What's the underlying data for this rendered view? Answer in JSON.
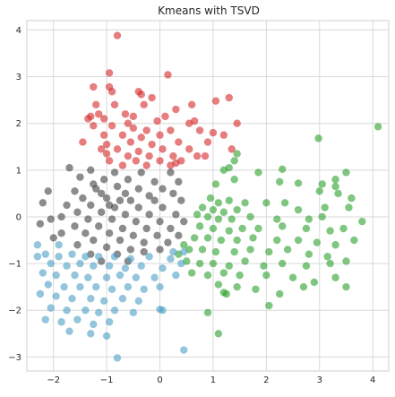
{
  "chart_data": {
    "type": "scatter",
    "title": "Kmeans with TSVD",
    "xlabel": "",
    "ylabel": "",
    "xlim": [
      -2.5,
      4.3
    ],
    "ylim": [
      -3.3,
      4.2
    ],
    "xticks": [
      -2,
      -1,
      0,
      1,
      2,
      3,
      4
    ],
    "yticks": [
      -3,
      -2,
      -1,
      0,
      1,
      2,
      3,
      4
    ],
    "grid": true,
    "legend": "none",
    "series": [
      {
        "color": "#d62728",
        "points": [
          [
            -0.8,
            3.88
          ],
          [
            -0.95,
            3.08
          ],
          [
            0.15,
            3.04
          ],
          [
            -1.25,
            2.78
          ],
          [
            -0.95,
            2.78
          ],
          [
            -0.9,
            2.68
          ],
          [
            -0.4,
            2.68
          ],
          [
            -0.35,
            2.62
          ],
          [
            1.05,
            2.48
          ],
          [
            1.3,
            2.55
          ],
          [
            -1.2,
            2.4
          ],
          [
            -0.3,
            2.4
          ],
          [
            -0.85,
            2.4
          ],
          [
            -0.15,
            2.55
          ],
          [
            0.6,
            2.4
          ],
          [
            0.3,
            2.3
          ],
          [
            -1.3,
            2.15
          ],
          [
            -1.35,
            2.1
          ],
          [
            -1.15,
            2.2
          ],
          [
            -1.05,
            2.1
          ],
          [
            -0.65,
            2.2
          ],
          [
            -0.5,
            2.15
          ],
          [
            0.1,
            2.15
          ],
          [
            -0.05,
            2.05
          ],
          [
            -0.6,
            2.0
          ],
          [
            0.55,
            2.0
          ],
          [
            0.65,
            2.05
          ],
          [
            1.45,
            2.0
          ],
          [
            -1.25,
            1.95
          ],
          [
            -0.9,
            1.95
          ],
          [
            -0.5,
            1.9
          ],
          [
            -0.25,
            1.85
          ],
          [
            0.2,
            1.85
          ],
          [
            0.75,
            1.85
          ],
          [
            -1.05,
            1.75
          ],
          [
            -0.7,
            1.75
          ],
          [
            -0.35,
            1.7
          ],
          [
            0.0,
            1.75
          ],
          [
            1.0,
            1.8
          ],
          [
            1.2,
            1.75
          ],
          [
            -1.45,
            1.6
          ],
          [
            -1.0,
            1.55
          ],
          [
            -0.55,
            1.6
          ],
          [
            -0.15,
            1.55
          ],
          [
            0.35,
            1.6
          ],
          [
            0.9,
            1.6
          ],
          [
            -1.1,
            1.45
          ],
          [
            -0.8,
            1.45
          ],
          [
            -0.4,
            1.4
          ],
          [
            0.05,
            1.45
          ],
          [
            0.55,
            1.45
          ],
          [
            1.35,
            1.45
          ],
          [
            -1.0,
            1.35
          ],
          [
            -0.6,
            1.3
          ],
          [
            -0.2,
            1.3
          ],
          [
            0.25,
            1.3
          ],
          [
            0.7,
            1.3
          ],
          [
            -0.95,
            1.2
          ],
          [
            -0.45,
            1.2
          ],
          [
            0.0,
            1.2
          ],
          [
            0.4,
            1.2
          ],
          [
            0.2,
            1.1
          ],
          [
            0.3,
            1.15
          ],
          [
            -0.7,
            1.1
          ],
          [
            -0.25,
            1.1
          ],
          [
            0.85,
            1.3
          ]
        ]
      },
      {
        "color": "#2ca02c",
        "points": [
          [
            4.1,
            1.93
          ],
          [
            2.98,
            1.68
          ],
          [
            1.45,
            1.35
          ],
          [
            1.4,
            1.2
          ],
          [
            1.3,
            1.05
          ],
          [
            1.2,
            1.0
          ],
          [
            2.3,
            1.02
          ],
          [
            1.85,
            0.95
          ],
          [
            3.5,
            0.95
          ],
          [
            3.3,
            0.8
          ],
          [
            3.05,
            0.7
          ],
          [
            2.6,
            0.72
          ],
          [
            3.3,
            0.65
          ],
          [
            3.0,
            0.55
          ],
          [
            1.05,
            0.7
          ],
          [
            1.4,
            0.8
          ],
          [
            2.25,
            0.75
          ],
          [
            3.35,
            0.5
          ],
          [
            3.6,
            0.4
          ],
          [
            0.95,
            0.4
          ],
          [
            1.1,
            0.3
          ],
          [
            1.3,
            0.35
          ],
          [
            1.6,
            0.3
          ],
          [
            2.0,
            0.3
          ],
          [
            2.35,
            0.3
          ],
          [
            0.8,
            0.2
          ],
          [
            1.0,
            0.15
          ],
          [
            1.2,
            0.1
          ],
          [
            1.45,
            0.15
          ],
          [
            2.6,
            0.15
          ],
          [
            3.1,
            0.2
          ],
          [
            3.55,
            0.2
          ],
          [
            0.7,
            0.05
          ],
          [
            0.9,
            0.0
          ],
          [
            1.1,
            -0.05
          ],
          [
            1.35,
            -0.05
          ],
          [
            1.7,
            0.0
          ],
          [
            2.2,
            -0.05
          ],
          [
            2.8,
            -0.05
          ],
          [
            3.05,
            0.0
          ],
          [
            3.8,
            -0.1
          ],
          [
            0.75,
            -0.2
          ],
          [
            1.0,
            -0.25
          ],
          [
            1.3,
            -0.3
          ],
          [
            1.55,
            -0.25
          ],
          [
            1.85,
            -0.25
          ],
          [
            2.3,
            -0.2
          ],
          [
            2.75,
            -0.25
          ],
          [
            3.2,
            -0.3
          ],
          [
            3.45,
            -0.25
          ],
          [
            0.65,
            -0.45
          ],
          [
            0.9,
            -0.45
          ],
          [
            1.15,
            -0.5
          ],
          [
            1.45,
            -0.5
          ],
          [
            1.75,
            -0.45
          ],
          [
            2.2,
            -0.5
          ],
          [
            2.6,
            -0.5
          ],
          [
            2.95,
            -0.55
          ],
          [
            3.3,
            -0.6
          ],
          [
            3.65,
            -0.5
          ],
          [
            0.55,
            -0.7
          ],
          [
            0.8,
            -0.7
          ],
          [
            1.05,
            -0.75
          ],
          [
            1.4,
            -0.75
          ],
          [
            1.7,
            -0.7
          ],
          [
            2.05,
            -0.75
          ],
          [
            2.4,
            -0.7
          ],
          [
            2.8,
            -0.8
          ],
          [
            3.15,
            -0.85
          ],
          [
            0.5,
            -0.95
          ],
          [
            0.75,
            -1.0
          ],
          [
            1.0,
            -1.0
          ],
          [
            1.3,
            -1.05
          ],
          [
            1.6,
            -0.95
          ],
          [
            1.95,
            -1.05
          ],
          [
            2.3,
            -1.0
          ],
          [
            2.75,
            -1.05
          ],
          [
            3.2,
            -1.0
          ],
          [
            3.5,
            -0.95
          ],
          [
            0.6,
            -1.2
          ],
          [
            0.9,
            -1.25
          ],
          [
            1.2,
            -1.2
          ],
          [
            1.5,
            -1.25
          ],
          [
            2.0,
            -1.25
          ],
          [
            2.5,
            -1.3
          ],
          [
            2.9,
            -1.4
          ],
          [
            3.3,
            -1.3
          ],
          [
            3.5,
            -1.5
          ],
          [
            1.1,
            -1.45
          ],
          [
            1.45,
            -1.5
          ],
          [
            1.8,
            -1.55
          ],
          [
            2.7,
            -1.5
          ],
          [
            1.2,
            -1.62
          ],
          [
            1.25,
            -1.65
          ],
          [
            2.25,
            -1.65
          ],
          [
            2.05,
            -1.9
          ],
          [
            0.9,
            -2.05
          ],
          [
            1.1,
            -2.5
          ],
          [
            0.45,
            -0.6
          ],
          [
            0.35,
            -0.8
          ]
        ]
      },
      {
        "color": "#404040",
        "points": [
          [
            -1.7,
            1.05
          ],
          [
            -1.3,
            1.0
          ],
          [
            -0.85,
            0.95
          ],
          [
            -0.35,
            0.95
          ],
          [
            0.2,
            0.95
          ],
          [
            -1.5,
            0.85
          ],
          [
            -1.05,
            0.8
          ],
          [
            -0.6,
            0.8
          ],
          [
            -0.1,
            0.75
          ],
          [
            0.35,
            0.75
          ],
          [
            -1.25,
            0.7
          ],
          [
            -0.8,
            0.65
          ],
          [
            -0.4,
            0.6
          ],
          [
            0.05,
            0.6
          ],
          [
            -2.1,
            0.55
          ],
          [
            -1.6,
            0.55
          ],
          [
            -1.1,
            0.5
          ],
          [
            -0.65,
            0.5
          ],
          [
            -0.2,
            0.45
          ],
          [
            0.25,
            0.5
          ],
          [
            -1.45,
            0.4
          ],
          [
            -1.0,
            0.4
          ],
          [
            -0.55,
            0.35
          ],
          [
            -0.1,
            0.35
          ],
          [
            0.4,
            0.35
          ],
          [
            -2.2,
            0.3
          ],
          [
            -1.75,
            0.25
          ],
          [
            -1.3,
            0.25
          ],
          [
            -0.85,
            0.2
          ],
          [
            -0.4,
            0.2
          ],
          [
            0.05,
            0.2
          ],
          [
            -1.55,
            0.1
          ],
          [
            -1.1,
            0.1
          ],
          [
            -0.65,
            0.05
          ],
          [
            -0.2,
            0.05
          ],
          [
            0.3,
            0.05
          ],
          [
            -2.05,
            -0.05
          ],
          [
            -1.85,
            0.0
          ],
          [
            -1.35,
            -0.05
          ],
          [
            -0.9,
            -0.05
          ],
          [
            -0.45,
            -0.1
          ],
          [
            0.0,
            -0.1
          ],
          [
            0.45,
            -0.1
          ],
          [
            -2.25,
            -0.15
          ],
          [
            -1.6,
            -0.2
          ],
          [
            -1.15,
            -0.2
          ],
          [
            -0.7,
            -0.25
          ],
          [
            -0.25,
            -0.25
          ],
          [
            0.2,
            -0.25
          ],
          [
            -1.85,
            -0.35
          ],
          [
            -1.4,
            -0.35
          ],
          [
            -0.95,
            -0.35
          ],
          [
            -0.5,
            -0.4
          ],
          [
            -0.05,
            -0.4
          ],
          [
            0.35,
            -0.4
          ],
          [
            -2.0,
            -0.45
          ],
          [
            -1.25,
            -0.5
          ],
          [
            -0.75,
            -0.5
          ],
          [
            -0.3,
            -0.55
          ],
          [
            0.15,
            -0.55
          ],
          [
            -1.55,
            -0.6
          ],
          [
            -1.0,
            -0.65
          ],
          [
            -0.55,
            -0.7
          ],
          [
            0.0,
            -0.7
          ],
          [
            -1.3,
            -0.8
          ],
          [
            -0.8,
            -0.8
          ],
          [
            -0.3,
            -0.75
          ],
          [
            -1.1,
            -0.95
          ],
          [
            -0.6,
            -0.95
          ],
          [
            -0.95,
            0.25
          ],
          [
            -0.75,
            0.35
          ],
          [
            -1.2,
            0.6
          ]
        ]
      },
      {
        "color": "#4b9fc4",
        "points": [
          [
            -2.3,
            -0.85
          ],
          [
            -2.15,
            -0.8
          ],
          [
            -1.9,
            -0.85
          ],
          [
            -1.65,
            -0.8
          ],
          [
            -1.4,
            -0.85
          ],
          [
            -1.15,
            -0.85
          ],
          [
            -0.85,
            -0.85
          ],
          [
            -0.55,
            -0.9
          ],
          [
            -0.2,
            -0.85
          ],
          [
            0.2,
            -0.9
          ],
          [
            -2.05,
            -1.0
          ],
          [
            -1.75,
            -1.05
          ],
          [
            -1.5,
            -1.0
          ],
          [
            -1.25,
            -1.05
          ],
          [
            -0.95,
            -1.05
          ],
          [
            -0.65,
            -1.1
          ],
          [
            -0.35,
            -1.05
          ],
          [
            0.05,
            -1.1
          ],
          [
            0.4,
            -1.0
          ],
          [
            -2.2,
            -1.2
          ],
          [
            -1.95,
            -1.25
          ],
          [
            -1.6,
            -1.25
          ],
          [
            -1.35,
            -1.3
          ],
          [
            -1.0,
            -1.3
          ],
          [
            -0.75,
            -1.25
          ],
          [
            -0.45,
            -1.3
          ],
          [
            -0.1,
            -1.3
          ],
          [
            0.3,
            -1.25
          ],
          [
            -2.1,
            -1.45
          ],
          [
            -1.8,
            -1.5
          ],
          [
            -1.5,
            -1.5
          ],
          [
            -1.2,
            -1.5
          ],
          [
            -0.9,
            -1.55
          ],
          [
            -0.6,
            -1.5
          ],
          [
            -0.3,
            -1.55
          ],
          [
            0.0,
            -1.5
          ],
          [
            -2.25,
            -1.65
          ],
          [
            -1.95,
            -1.7
          ],
          [
            -1.65,
            -1.75
          ],
          [
            -1.3,
            -1.75
          ],
          [
            -1.05,
            -1.8
          ],
          [
            -0.7,
            -1.75
          ],
          [
            -0.4,
            -1.8
          ],
          [
            -2.05,
            -1.95
          ],
          [
            -1.75,
            -2.0
          ],
          [
            -1.4,
            -2.0
          ],
          [
            -1.15,
            -2.05
          ],
          [
            -0.85,
            -2.0
          ],
          [
            -0.5,
            -2.05
          ],
          [
            0.0,
            -1.98
          ],
          [
            0.05,
            -2.0
          ],
          [
            -2.15,
            -2.2
          ],
          [
            -1.85,
            -2.25
          ],
          [
            -1.55,
            -2.2
          ],
          [
            -1.25,
            -2.3
          ],
          [
            -0.95,
            -2.25
          ],
          [
            -1.7,
            -2.45
          ],
          [
            -1.3,
            -2.5
          ],
          [
            -1.0,
            -2.55
          ],
          [
            -0.8,
            -3.02
          ],
          [
            0.45,
            -2.85
          ],
          [
            -2.3,
            -0.6
          ],
          [
            -1.9,
            -0.6
          ],
          [
            0.25,
            -0.75
          ],
          [
            0.45,
            -0.75
          ]
        ]
      }
    ]
  }
}
